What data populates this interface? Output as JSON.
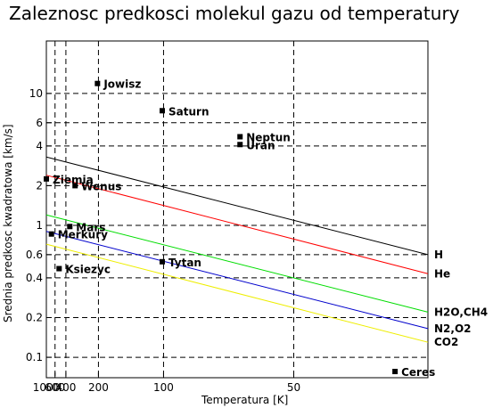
{
  "chart_data": {
    "type": "scatter",
    "title": "Zaleznosc predkosci molekul gazu od temperatury",
    "xlabel": "Temperatura [K]",
    "ylabel": "Srednia predkosc kwadratowa [km/s]",
    "x_scale": "reciprocal",
    "y_scale": "log",
    "xlim": [
      1000,
      33
    ],
    "ylim": [
      0.07,
      25
    ],
    "grid": true,
    "x_ticks": [
      {
        "value": 1000,
        "label": "1000"
      },
      {
        "value": 600,
        "label": "600"
      },
      {
        "value": 400,
        "label": "400"
      },
      {
        "value": 200,
        "label": "200"
      },
      {
        "value": 100,
        "label": "100"
      },
      {
        "value": 50,
        "label": "50"
      }
    ],
    "y_ticks": [
      {
        "value": 0.1,
        "label": "0.1"
      },
      {
        "value": 0.2,
        "label": "0.2"
      },
      {
        "value": 0.4,
        "label": "0.4"
      },
      {
        "value": 0.6,
        "label": "0.6"
      },
      {
        "value": 1,
        "label": "1"
      },
      {
        "value": 2,
        "label": "2"
      },
      {
        "value": 4,
        "label": "4"
      },
      {
        "value": 6,
        "label": "6"
      },
      {
        "value": 10,
        "label": "10"
      }
    ],
    "points": [
      {
        "label": "Jowisz",
        "x": 203,
        "y": 11.9
      },
      {
        "label": "Saturn",
        "x": 101,
        "y": 7.4
      },
      {
        "label": "Neptun",
        "x": 63,
        "y": 4.7
      },
      {
        "label": "Uran",
        "x": 63,
        "y": 4.1
      },
      {
        "label": "Ziemia",
        "x": 1000,
        "y": 2.25
      },
      {
        "label": "Wenus",
        "x": 312,
        "y": 2.0
      },
      {
        "label": "Mars",
        "x": 357,
        "y": 0.98
      },
      {
        "label": "Merkury",
        "x": 719,
        "y": 0.86
      },
      {
        "label": "Tytan",
        "x": 101,
        "y": 0.53
      },
      {
        "label": "Ksiezyc",
        "x": 505,
        "y": 0.47
      },
      {
        "label": "Ceres",
        "x": 36,
        "y": 0.078
      }
    ],
    "series": [
      {
        "name": "H",
        "color": "#000000",
        "x": [
          1000,
          33
        ],
        "y": [
          3.3,
          0.6
        ]
      },
      {
        "name": "He",
        "color": "#ff0000",
        "x": [
          1000,
          33
        ],
        "y": [
          2.4,
          0.43
        ]
      },
      {
        "name": "H2O,CH4",
        "color": "#00dd00",
        "x": [
          1000,
          33
        ],
        "y": [
          1.2,
          0.22
        ]
      },
      {
        "name": "N2,O2",
        "color": "#0000cc",
        "x": [
          1000,
          33
        ],
        "y": [
          0.9,
          0.165
        ]
      },
      {
        "name": "CO2",
        "color": "#eeee00",
        "x": [
          1000,
          33
        ],
        "y": [
          0.72,
          0.13
        ]
      }
    ]
  }
}
